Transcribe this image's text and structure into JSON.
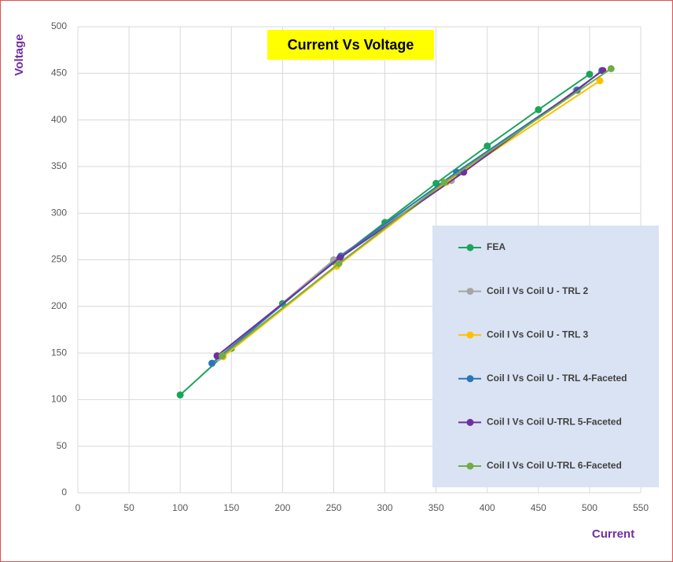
{
  "chart_data": {
    "type": "line",
    "title": "Current Vs Voltage",
    "x_label": "Current",
    "y_label": "Voltage",
    "xlim": [
      0,
      550
    ],
    "xticks": [
      0,
      50,
      100,
      150,
      200,
      250,
      300,
      350,
      400,
      450,
      500,
      550
    ],
    "ylim": [
      0,
      500
    ],
    "yticks": [
      0,
      50,
      100,
      150,
      200,
      250,
      300,
      350,
      400,
      450,
      500
    ],
    "grid": true,
    "legend": "right",
    "series": [
      {
        "name": "FEA",
        "color": "#1aa55a",
        "x": [
          100,
          150,
          200,
          250,
          300,
          350,
          400,
          450,
          500
        ],
        "values": [
          105,
          155,
          203,
          248,
          290,
          332,
          372,
          411,
          449
        ]
      },
      {
        "name": "Coil I Vs Coil U - TRL 2",
        "color": "#a5a5a5",
        "x": [
          137,
          250,
          365,
          487
        ],
        "values": [
          145,
          250,
          335,
          432
        ]
      },
      {
        "name": "Coil I Vs Coil U - TRL 3",
        "color": "#ffc000",
        "x": [
          142,
          253,
          360,
          510
        ],
        "values": [
          146,
          243,
          333,
          442
        ]
      },
      {
        "name": "Coil I Vs Coil U - TRL 4-Faceted",
        "color": "#2e75b6",
        "x": [
          131,
          257,
          370,
          488,
          512
        ],
        "values": [
          139,
          254,
          344,
          432,
          453
        ]
      },
      {
        "name": "Coil I Vs Coil U-TRL 5-Faceted",
        "color": "#7030a0",
        "x": [
          136,
          256,
          377,
          513
        ],
        "values": [
          147,
          252,
          344,
          453
        ]
      },
      {
        "name": "Coil I Vs Coil U-TRL 6-Faceted",
        "color": "#70ad47",
        "x": [
          141,
          255,
          358,
          521
        ],
        "values": [
          147,
          246,
          333,
          455
        ]
      }
    ]
  }
}
